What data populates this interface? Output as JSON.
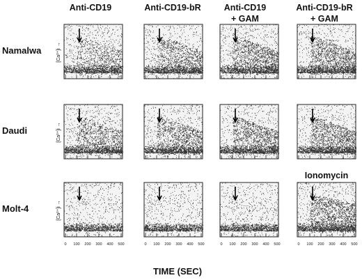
{
  "columns": [
    [
      "Anti-CD19"
    ],
    [
      "Anti-CD19-bR"
    ],
    [
      "Anti-CD19",
      "+ GAM"
    ],
    [
      "Anti-CD19-bR",
      "+ GAM"
    ]
  ],
  "rows": [
    "Namalwa",
    "Daudi",
    "Molt-4"
  ],
  "y_axis_label": "[Ca²⁺]i →",
  "extra_label": "Ionomycin",
  "x_ticks": [
    0,
    100,
    200,
    300,
    400,
    500
  ],
  "x_axis_label": "TIME (SEC)"
}
